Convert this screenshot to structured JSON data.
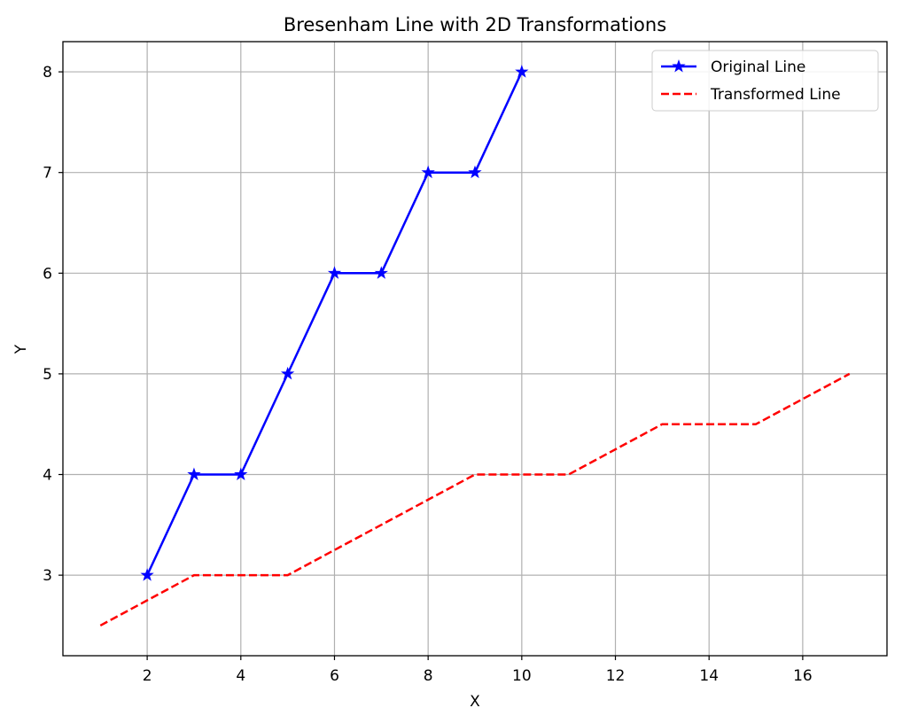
{
  "chart_data": {
    "type": "line",
    "title": "Bresenham Line with 2D Transformations",
    "xlabel": "X",
    "ylabel": "Y",
    "xlim": [
      0.2,
      17.8
    ],
    "ylim": [
      2.2,
      8.3
    ],
    "xticks": [
      2,
      4,
      6,
      8,
      10,
      12,
      14,
      16
    ],
    "yticks": [
      3,
      4,
      5,
      6,
      7,
      8
    ],
    "grid": true,
    "legend_position": "top-right",
    "series": [
      {
        "name": "Original Line",
        "color": "#0000ff",
        "style": "solid",
        "marker": "star",
        "x": [
          2,
          3,
          4,
          5,
          6,
          7,
          8,
          9,
          10
        ],
        "y": [
          3,
          4,
          4,
          5,
          6,
          6,
          7,
          7,
          8
        ]
      },
      {
        "name": "Transformed Line",
        "color": "#ff0000",
        "style": "dashed",
        "marker": "none",
        "x": [
          1,
          3,
          5,
          7,
          9,
          11,
          13,
          15,
          17
        ],
        "y": [
          2.5,
          3,
          3,
          3.5,
          4,
          4,
          4.5,
          4.5,
          5
        ]
      }
    ]
  }
}
